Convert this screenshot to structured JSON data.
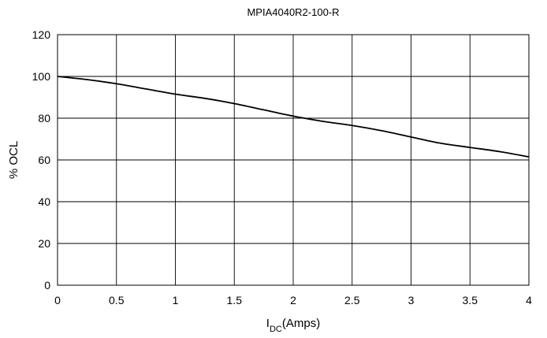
{
  "chart_data": {
    "type": "line",
    "title": "MPIA4040R2-100-R",
    "xlabel": {
      "main": "I",
      "subscript": "DC",
      "suffix": "(Amps)"
    },
    "ylabel": "% OCL",
    "xlim": [
      0,
      4
    ],
    "ylim": [
      0,
      120
    ],
    "x_ticks": [
      0,
      0.5,
      1,
      1.5,
      2,
      2.5,
      3,
      3.5,
      4
    ],
    "y_ticks": [
      0,
      20,
      40,
      60,
      80,
      100,
      120
    ],
    "grid": true,
    "legend": "none",
    "series": [
      {
        "x": [
          0,
          0.25,
          0.5,
          0.75,
          1.0,
          1.25,
          1.5,
          1.75,
          2.0,
          2.25,
          2.5,
          2.75,
          3.0,
          3.25,
          3.5,
          3.75,
          4.0
        ],
        "y": [
          100,
          98.5,
          96.5,
          94,
          91.5,
          89.5,
          87,
          84,
          81,
          78.5,
          76.5,
          74,
          71,
          68,
          66,
          64,
          61.5
        ]
      }
    ],
    "colors": {
      "line": "#000000",
      "grid": "#000000",
      "background": "#ffffff"
    }
  }
}
